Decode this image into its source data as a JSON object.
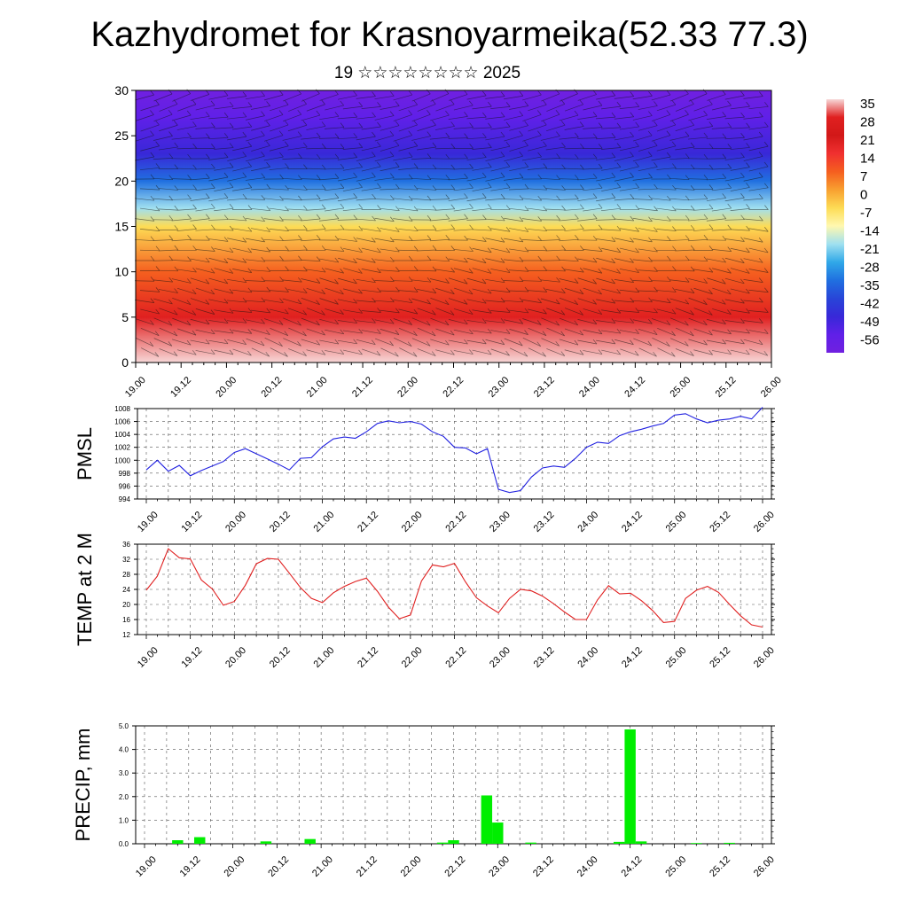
{
  "header": {
    "title": "Kazhydromet for Krasnoyarmeika(52.33 77.3)",
    "subtitle": "19 ☆☆☆☆☆☆☆☆ 2025"
  },
  "chart_data": [
    {
      "type": "heatmap",
      "title": "Kazhydromet for Krasnoyarmeika(52.33 77.3)",
      "subtitle": "19 ☆☆☆☆☆☆☆☆ 2025",
      "xlabel": "",
      "ylabel": "",
      "x_ticks": [
        "19.00",
        "19.12",
        "20.00",
        "20.12",
        "21.00",
        "21.12",
        "22.00",
        "22.12",
        "23.00",
        "23.12",
        "24.00",
        "24.12",
        "25.00",
        "25.12",
        "26.00"
      ],
      "ylim": [
        0,
        30
      ],
      "y_ticks": [
        0,
        5,
        10,
        15,
        20,
        25,
        30
      ],
      "colorbar": {
        "labels": [
          "35",
          "28",
          "21",
          "14",
          "7",
          "0",
          "-7",
          "-14",
          "-21",
          "-28",
          "-35",
          "-42",
          "-49",
          "-56"
        ],
        "colors": [
          "#f7d7d7",
          "#e02020",
          "#d21818",
          "#f03030",
          "#f55f1f",
          "#f8a030",
          "#fddc55",
          "#fff8b0",
          "#a0e0f0",
          "#30a8e8",
          "#2070e0",
          "#2845d8",
          "#3828d8",
          "#6020e8",
          "#7020e0"
        ]
      },
      "temperature_profile": {
        "heights": [
          0,
          5,
          10,
          15,
          17,
          20,
          23,
          27,
          30
        ],
        "values": [
          32,
          25,
          10,
          -10,
          -22,
          -32,
          -48,
          -56,
          -60
        ]
      },
      "overlay": "wind barbs"
    },
    {
      "type": "line",
      "ylabel": "PMSL",
      "ylim": [
        994,
        1008
      ],
      "y_ticks": [
        994,
        996,
        998,
        1000,
        1002,
        1004,
        1006,
        1008
      ],
      "x_ticks": [
        "19.00",
        "19.12",
        "20.00",
        "20.12",
        "21.00",
        "21.12",
        "22.00",
        "22.12",
        "23.00",
        "23.12",
        "24.00",
        "24.12",
        "25.00",
        "25.12",
        "26.00"
      ],
      "color": "#2020e0",
      "series": [
        {
          "x": [
            0,
            1,
            2,
            3,
            4,
            5,
            6,
            7,
            8,
            9,
            10,
            11,
            12,
            13,
            14,
            15,
            16,
            17,
            18,
            19,
            20,
            21,
            22,
            23,
            24,
            25,
            26,
            27,
            28,
            29,
            30,
            31,
            32,
            33,
            34,
            35,
            36,
            37,
            38,
            39,
            40,
            41,
            42,
            43,
            44,
            45,
            46,
            47,
            48,
            49,
            50,
            51,
            52,
            53,
            54,
            55,
            56
          ],
          "values": [
            998.5,
            1000,
            998.3,
            999.2,
            997.6,
            998.4,
            999.1,
            999.8,
            1001.2,
            1001.8,
            1001,
            1000.2,
            999.4,
            998.5,
            1000.3,
            1000.4,
            1002.1,
            1003.3,
            1003.6,
            1003.4,
            1004.4,
            1005.7,
            1006.1,
            1005.8,
            1006,
            1005.6,
            1004.4,
            1003.7,
            1002,
            1001.9,
            1001,
            1001.8,
            995.5,
            995,
            995.3,
            997.4,
            998.8,
            999.1,
            998.9,
            1000.3,
            1002,
            1002.8,
            1002.6,
            1003.8,
            1004.4,
            1004.8,
            1005.3,
            1005.7,
            1007,
            1007.2,
            1006.4,
            1005.8,
            1006.2,
            1006.4,
            1006.8,
            1006.4,
            1008.2
          ]
        }
      ]
    },
    {
      "type": "line",
      "ylabel": "TEMP at 2 M",
      "ylim": [
        12,
        36
      ],
      "y_ticks": [
        12,
        16,
        20,
        24,
        28,
        32,
        36
      ],
      "x_ticks": [
        "19.00",
        "19.12",
        "20.00",
        "20.12",
        "21.00",
        "21.12",
        "22.00",
        "22.12",
        "23.00",
        "23.12",
        "24.00",
        "24.12",
        "25.00",
        "25.12",
        "26.00"
      ],
      "color": "#e02020",
      "series": [
        {
          "x": [
            0,
            1,
            2,
            3,
            4,
            5,
            6,
            7,
            8,
            9,
            10,
            11,
            12,
            13,
            14,
            15,
            16,
            17,
            18,
            19,
            20,
            21,
            22,
            23,
            24,
            25,
            26,
            27,
            28,
            29,
            30,
            31,
            32,
            33,
            34,
            35,
            36,
            37,
            38,
            39,
            40,
            41,
            42,
            43,
            44,
            45,
            46,
            47,
            48,
            49,
            50,
            51,
            52,
            53,
            54,
            55,
            56
          ],
          "values": [
            23.8,
            27.5,
            34.8,
            32.4,
            32.1,
            26.5,
            24.1,
            19.8,
            20.8,
            25.1,
            30.8,
            32.2,
            32,
            28.3,
            24.5,
            21.6,
            20.5,
            23.1,
            24.8,
            26.1,
            27,
            23.5,
            19.3,
            16.2,
            17.2,
            26.2,
            30.5,
            30,
            30.9,
            26,
            21.8,
            19.6,
            17.8,
            21.6,
            24,
            23.6,
            22.2,
            20.2,
            18,
            16,
            16,
            21.2,
            25,
            22.8,
            23,
            21,
            18.4,
            15.2,
            15.5,
            21.6,
            23.8,
            24.8,
            23.2,
            20,
            17,
            14.6,
            14
          ]
        }
      ]
    },
    {
      "type": "bar",
      "ylabel": "PRECIP, mm",
      "ylim": [
        0,
        5
      ],
      "y_ticks": [
        "0.0",
        "1.0",
        "2.0",
        "3.0",
        "4.0",
        "5.0"
      ],
      "x_ticks": [
        "19.00",
        "19.12",
        "20.00",
        "20.12",
        "21.00",
        "21.12",
        "22.00",
        "22.12",
        "23.00",
        "23.12",
        "24.00",
        "24.12",
        "25.00",
        "25.12",
        "26.00"
      ],
      "color": "#00ee00",
      "x": [
        3,
        5,
        11,
        15,
        27,
        28,
        31,
        32,
        35,
        43,
        44,
        45,
        50,
        53
      ],
      "values": [
        0.15,
        0.28,
        0.1,
        0.2,
        0.05,
        0.15,
        2.05,
        0.9,
        0.05,
        0.08,
        4.85,
        0.1,
        0.03,
        0.04
      ]
    }
  ]
}
